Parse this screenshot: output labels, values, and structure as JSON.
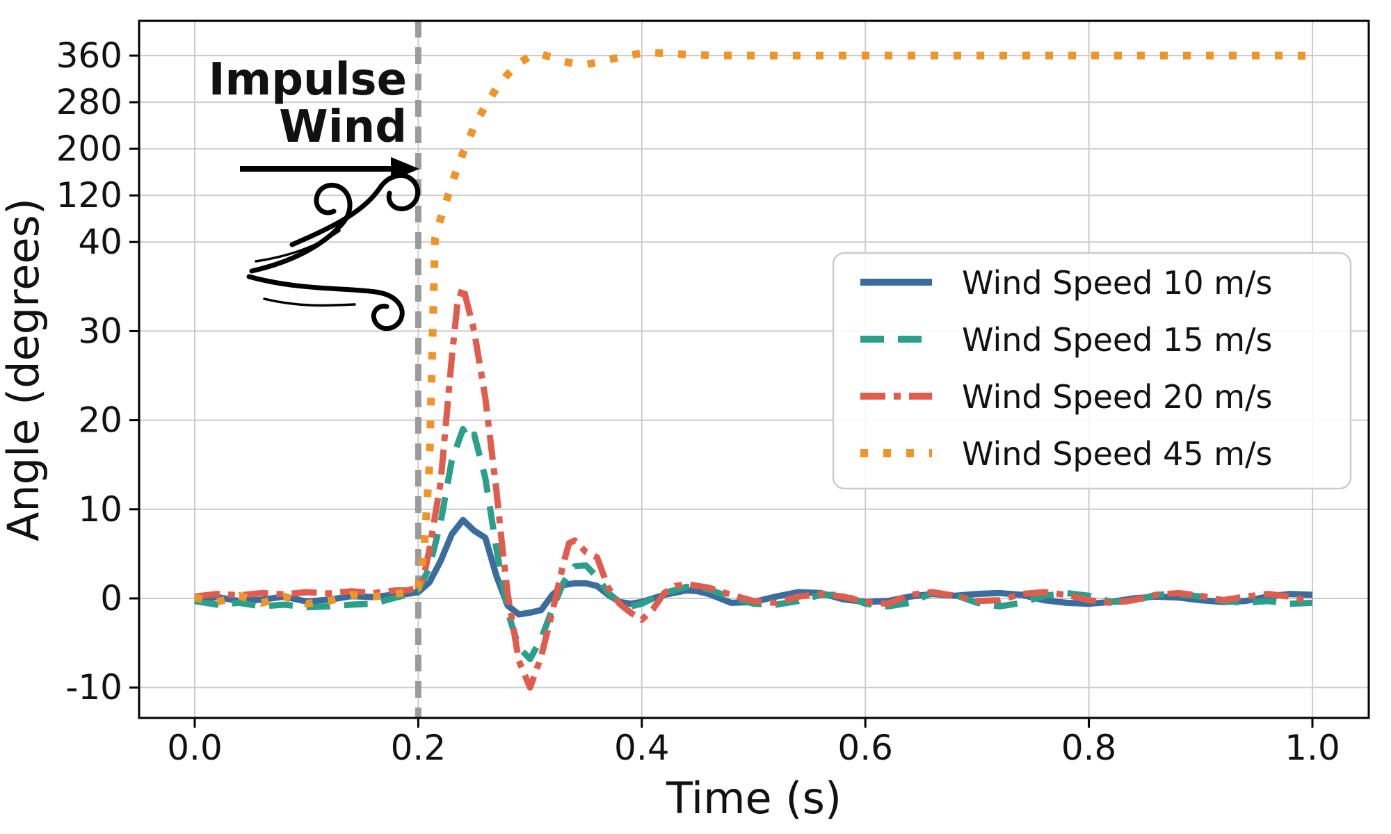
{
  "chart_data": {
    "type": "line",
    "title": "",
    "xlabel": "Time (s)",
    "ylabel": "Angle (degrees)",
    "x_ticks": [
      0.0,
      0.2,
      0.4,
      0.6,
      0.8,
      1.0
    ],
    "x_tick_labels": [
      "0.0",
      "0.2",
      "0.4",
      "0.6",
      "0.8",
      "1.0"
    ],
    "y_ticks": [
      -10,
      0,
      10,
      20,
      30,
      40,
      120,
      200,
      280,
      360
    ],
    "y_tick_labels": [
      "-10",
      "0",
      "10",
      "20",
      "30",
      "40",
      "120",
      "200",
      "280",
      "360"
    ],
    "y_scale_note": "broken/compressed axis: linear 10-per-division below 40, 80-per-division above 40",
    "xlim": [
      -0.05,
      1.05
    ],
    "grid": true,
    "axis_color": "#000000",
    "grid_color": "#cccccc",
    "annotations": {
      "impulse_line1": "Impulse",
      "impulse_line2": "Wind",
      "impulse_time": 0.2,
      "marker_color": "#9b9b9b",
      "arrow_color": "#000000"
    },
    "legend": {
      "location": "right",
      "border_color": "#cccccc",
      "background": "rgba(255,255,255,0.85)"
    },
    "series": [
      {
        "name": "Wind Speed 10 m/s",
        "color": "#3a6d9e",
        "style": "solid",
        "points": [
          [
            0.0,
            -0.2
          ],
          [
            0.02,
            0.15
          ],
          [
            0.04,
            -0.3
          ],
          [
            0.06,
            -0.15
          ],
          [
            0.08,
            0.2
          ],
          [
            0.1,
            -0.35
          ],
          [
            0.12,
            -0.15
          ],
          [
            0.14,
            0.25
          ],
          [
            0.16,
            0.15
          ],
          [
            0.18,
            0.45
          ],
          [
            0.19,
            0.5
          ],
          [
            0.2,
            0.7
          ],
          [
            0.21,
            1.8
          ],
          [
            0.22,
            4.2
          ],
          [
            0.23,
            7.2
          ],
          [
            0.24,
            8.8
          ],
          [
            0.25,
            7.6
          ],
          [
            0.26,
            6.8
          ],
          [
            0.27,
            2.5
          ],
          [
            0.28,
            -0.8
          ],
          [
            0.29,
            -1.8
          ],
          [
            0.3,
            -1.6
          ],
          [
            0.31,
            -1.3
          ],
          [
            0.32,
            0.4
          ],
          [
            0.33,
            1.5
          ],
          [
            0.34,
            1.7
          ],
          [
            0.35,
            1.7
          ],
          [
            0.36,
            1.4
          ],
          [
            0.37,
            0.4
          ],
          [
            0.38,
            -0.4
          ],
          [
            0.39,
            -0.6
          ],
          [
            0.4,
            -0.4
          ],
          [
            0.42,
            0.4
          ],
          [
            0.44,
            0.9
          ],
          [
            0.45,
            0.8
          ],
          [
            0.46,
            0.5
          ],
          [
            0.48,
            -0.5
          ],
          [
            0.5,
            -0.4
          ],
          [
            0.52,
            0.2
          ],
          [
            0.54,
            0.7
          ],
          [
            0.56,
            0.6
          ],
          [
            0.58,
            -0.1
          ],
          [
            0.6,
            -0.4
          ],
          [
            0.62,
            -0.3
          ],
          [
            0.64,
            0.2
          ],
          [
            0.66,
            0.5
          ],
          [
            0.68,
            0.3
          ],
          [
            0.7,
            0.5
          ],
          [
            0.72,
            0.6
          ],
          [
            0.74,
            0.4
          ],
          [
            0.76,
            -0.2
          ],
          [
            0.78,
            -0.5
          ],
          [
            0.8,
            -0.6
          ],
          [
            0.82,
            -0.4
          ],
          [
            0.84,
            0.0
          ],
          [
            0.86,
            0.2
          ],
          [
            0.88,
            0.1
          ],
          [
            0.9,
            -0.2
          ],
          [
            0.92,
            -0.4
          ],
          [
            0.94,
            -0.3
          ],
          [
            0.96,
            0.2
          ],
          [
            0.98,
            0.5
          ],
          [
            1.0,
            0.4
          ]
        ]
      },
      {
        "name": "Wind Speed 15 m/s",
        "color": "#2aa08a",
        "style": "dashed",
        "points": [
          [
            0.0,
            -0.3
          ],
          [
            0.02,
            -0.7
          ],
          [
            0.04,
            -0.5
          ],
          [
            0.06,
            -0.9
          ],
          [
            0.08,
            -0.7
          ],
          [
            0.1,
            -1.0
          ],
          [
            0.12,
            -0.9
          ],
          [
            0.14,
            -0.7
          ],
          [
            0.16,
            -0.6
          ],
          [
            0.18,
            0.1
          ],
          [
            0.19,
            0.4
          ],
          [
            0.2,
            0.9
          ],
          [
            0.21,
            3.5
          ],
          [
            0.22,
            8.5
          ],
          [
            0.23,
            15.5
          ],
          [
            0.24,
            19.0
          ],
          [
            0.245,
            17.8
          ],
          [
            0.25,
            18.4
          ],
          [
            0.26,
            13.5
          ],
          [
            0.27,
            5.5
          ],
          [
            0.28,
            -1.5
          ],
          [
            0.29,
            -5.5
          ],
          [
            0.3,
            -6.8
          ],
          [
            0.31,
            -4.5
          ],
          [
            0.32,
            -1.2
          ],
          [
            0.33,
            1.8
          ],
          [
            0.34,
            3.6
          ],
          [
            0.35,
            3.7
          ],
          [
            0.36,
            2.4
          ],
          [
            0.37,
            0.6
          ],
          [
            0.38,
            -0.4
          ],
          [
            0.39,
            -0.9
          ],
          [
            0.4,
            -0.6
          ],
          [
            0.42,
            0.6
          ],
          [
            0.44,
            1.3
          ],
          [
            0.46,
            1.0
          ],
          [
            0.48,
            0.1
          ],
          [
            0.5,
            -0.6
          ],
          [
            0.52,
            -0.7
          ],
          [
            0.54,
            -0.3
          ],
          [
            0.56,
            0.4
          ],
          [
            0.58,
            0.4
          ],
          [
            0.6,
            -0.6
          ],
          [
            0.62,
            -0.9
          ],
          [
            0.64,
            -0.5
          ],
          [
            0.66,
            0.6
          ],
          [
            0.68,
            0.4
          ],
          [
            0.7,
            -0.5
          ],
          [
            0.72,
            -0.9
          ],
          [
            0.74,
            -0.5
          ],
          [
            0.76,
            0.3
          ],
          [
            0.78,
            0.6
          ],
          [
            0.8,
            0.3
          ],
          [
            0.82,
            -0.4
          ],
          [
            0.84,
            -0.3
          ],
          [
            0.86,
            0.4
          ],
          [
            0.88,
            0.5
          ],
          [
            0.9,
            0.2
          ],
          [
            0.92,
            -0.3
          ],
          [
            0.94,
            -0.5
          ],
          [
            0.96,
            -0.3
          ],
          [
            0.98,
            -0.6
          ],
          [
            1.0,
            -0.5
          ]
        ]
      },
      {
        "name": "Wind Speed 20 m/s",
        "color": "#e05c4d",
        "style": "dashdot",
        "points": [
          [
            0.0,
            0.2
          ],
          [
            0.02,
            0.5
          ],
          [
            0.04,
            0.35
          ],
          [
            0.06,
            0.6
          ],
          [
            0.08,
            0.45
          ],
          [
            0.1,
            0.7
          ],
          [
            0.12,
            0.55
          ],
          [
            0.14,
            0.8
          ],
          [
            0.16,
            0.6
          ],
          [
            0.18,
            0.9
          ],
          [
            0.19,
            0.9
          ],
          [
            0.2,
            1.2
          ],
          [
            0.205,
            2.5
          ],
          [
            0.21,
            5.5
          ],
          [
            0.22,
            13
          ],
          [
            0.23,
            27
          ],
          [
            0.235,
            33
          ],
          [
            0.24,
            35
          ],
          [
            0.25,
            30
          ],
          [
            0.26,
            22.5
          ],
          [
            0.27,
            12
          ],
          [
            0.275,
            6
          ],
          [
            0.28,
            0.5
          ],
          [
            0.29,
            -7
          ],
          [
            0.3,
            -10
          ],
          [
            0.31,
            -6.5
          ],
          [
            0.32,
            -1.5
          ],
          [
            0.33,
            4
          ],
          [
            0.335,
            6.2
          ],
          [
            0.34,
            6.5
          ],
          [
            0.35,
            5.2
          ],
          [
            0.36,
            4.6
          ],
          [
            0.37,
            1.2
          ],
          [
            0.38,
            -0.6
          ],
          [
            0.39,
            -1.6
          ],
          [
            0.4,
            -2.4
          ],
          [
            0.41,
            -1.2
          ],
          [
            0.42,
            0.6
          ],
          [
            0.43,
            1.4
          ],
          [
            0.44,
            1.6
          ],
          [
            0.45,
            1.4
          ],
          [
            0.46,
            1.2
          ],
          [
            0.48,
            0.4
          ],
          [
            0.5,
            -0.3
          ],
          [
            0.52,
            -0.5
          ],
          [
            0.54,
            0.2
          ],
          [
            0.56,
            0.5
          ],
          [
            0.58,
            0.2
          ],
          [
            0.6,
            -0.4
          ],
          [
            0.62,
            -0.6
          ],
          [
            0.64,
            0.4
          ],
          [
            0.66,
            0.7
          ],
          [
            0.68,
            0.3
          ],
          [
            0.7,
            -0.3
          ],
          [
            0.72,
            -0.2
          ],
          [
            0.74,
            0.5
          ],
          [
            0.76,
            0.7
          ],
          [
            0.78,
            0.4
          ],
          [
            0.8,
            -0.2
          ],
          [
            0.82,
            -0.5
          ],
          [
            0.84,
            -0.2
          ],
          [
            0.86,
            0.4
          ],
          [
            0.88,
            0.6
          ],
          [
            0.9,
            0.3
          ],
          [
            0.92,
            -0.2
          ],
          [
            0.94,
            0.2
          ],
          [
            0.96,
            0.5
          ],
          [
            0.98,
            0.2
          ],
          [
            1.0,
            -0.4
          ]
        ]
      },
      {
        "name": "Wind Speed 45 m/s",
        "color": "#ee9428",
        "style": "dotted",
        "points": [
          [
            0.0,
            0.1
          ],
          [
            0.02,
            -0.4
          ],
          [
            0.04,
            0.3
          ],
          [
            0.06,
            -0.5
          ],
          [
            0.08,
            0.2
          ],
          [
            0.1,
            -0.6
          ],
          [
            0.12,
            -0.3
          ],
          [
            0.14,
            0.4
          ],
          [
            0.16,
            0.2
          ],
          [
            0.18,
            0.5
          ],
          [
            0.19,
            0.7
          ],
          [
            0.2,
            1.2
          ],
          [
            0.205,
            5
          ],
          [
            0.21,
            15
          ],
          [
            0.215,
            46
          ],
          [
            0.22,
            80
          ],
          [
            0.225,
            110
          ],
          [
            0.23,
            140
          ],
          [
            0.235,
            167
          ],
          [
            0.24,
            193
          ],
          [
            0.25,
            238
          ],
          [
            0.26,
            274
          ],
          [
            0.27,
            304
          ],
          [
            0.28,
            328
          ],
          [
            0.29,
            347
          ],
          [
            0.3,
            359
          ],
          [
            0.31,
            362
          ],
          [
            0.32,
            357
          ],
          [
            0.33,
            350
          ],
          [
            0.34,
            346
          ],
          [
            0.35,
            345
          ],
          [
            0.36,
            348
          ],
          [
            0.37,
            353
          ],
          [
            0.38,
            357
          ],
          [
            0.39,
            361
          ],
          [
            0.4,
            364
          ],
          [
            0.41,
            365
          ],
          [
            0.42,
            364
          ],
          [
            0.43,
            363
          ],
          [
            0.44,
            362
          ],
          [
            0.46,
            360.5
          ],
          [
            0.48,
            360
          ],
          [
            0.5,
            360
          ],
          [
            0.52,
            360
          ],
          [
            0.54,
            360
          ],
          [
            0.56,
            360
          ],
          [
            0.58,
            360
          ],
          [
            0.6,
            360
          ],
          [
            0.62,
            360
          ],
          [
            0.64,
            360
          ],
          [
            0.66,
            360
          ],
          [
            0.68,
            360
          ],
          [
            0.7,
            360
          ],
          [
            0.72,
            360
          ],
          [
            0.74,
            360
          ],
          [
            0.76,
            360
          ],
          [
            0.78,
            360
          ],
          [
            0.8,
            360
          ],
          [
            0.82,
            360
          ],
          [
            0.84,
            360
          ],
          [
            0.86,
            360
          ],
          [
            0.88,
            360
          ],
          [
            0.9,
            360
          ],
          [
            0.92,
            360
          ],
          [
            0.94,
            360
          ],
          [
            0.96,
            360
          ],
          [
            0.98,
            360
          ],
          [
            1.0,
            359.5
          ]
        ]
      }
    ]
  }
}
